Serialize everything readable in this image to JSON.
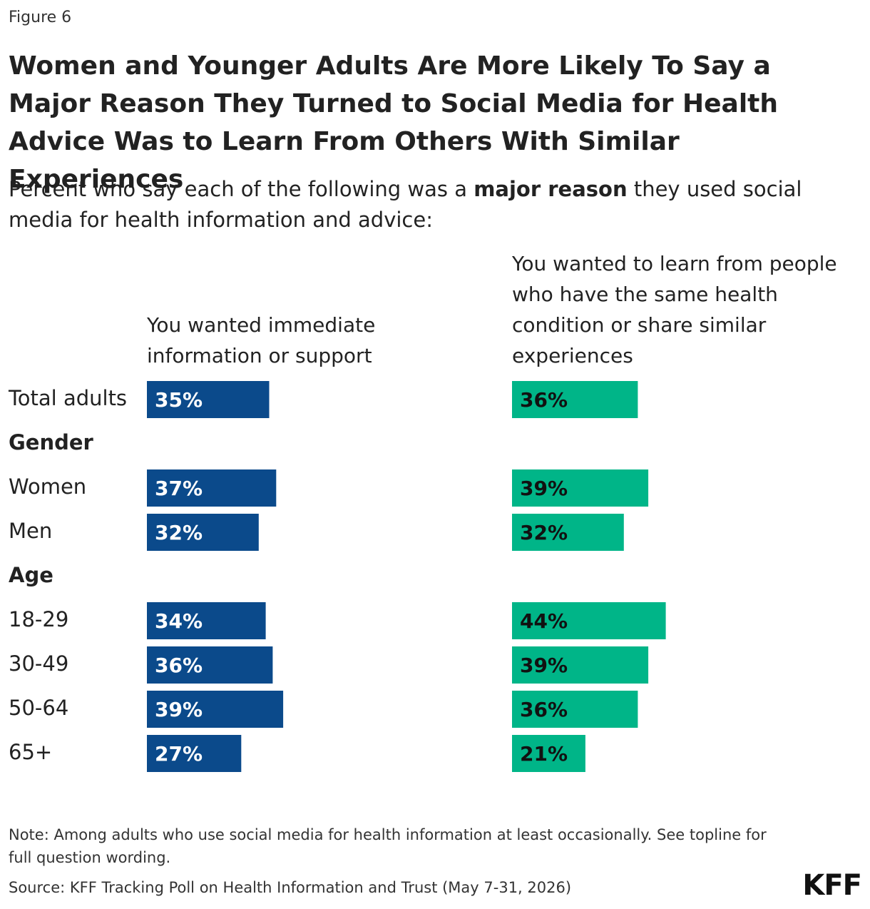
{
  "chart_data": {
    "type": "bar",
    "figure_label": "Figure 6",
    "title": "Women and Younger Adults Are More Likely To Say a Major Reason They Turned to Social Media for Health Advice Was to Learn From Others With Similar Experiences",
    "subtitle": [
      "Percent who say each of the following was a ",
      "major reason",
      " they used social media for health information and advice:"
    ],
    "categories": [
      "Total adults",
      "Gender",
      "Women",
      "Men",
      "Age",
      "18-29",
      "30-49",
      "50-64",
      "65+"
    ],
    "series": [
      {
        "name": "You wanted immediate information or support",
        "color": "#0b4a8b",
        "label_color": "#ffffff",
        "values": [
          35,
          null,
          37,
          32,
          null,
          34,
          36,
          39,
          27
        ],
        "value_labels": [
          "35%",
          null,
          "37%",
          "32%",
          null,
          "34%",
          "36%",
          "39%",
          "27%"
        ]
      },
      {
        "name": "You wanted to learn from people who have the same health condition or share similar experiences",
        "color": "#00b588",
        "label_color": "#111111",
        "values": [
          36,
          null,
          39,
          32,
          null,
          44,
          39,
          36,
          21
        ],
        "value_labels": [
          "36%",
          null,
          "39%",
          "32%",
          null,
          "44%",
          "39%",
          "36%",
          "21%"
        ]
      }
    ],
    "note": "Note: Among adults who use social media for health information at least occasionally. See topline for full question wording.",
    "source": "Source: KFF Tracking Poll on Health Information and Trust (May 7-31, 2026)",
    "logo": "KFF"
  }
}
